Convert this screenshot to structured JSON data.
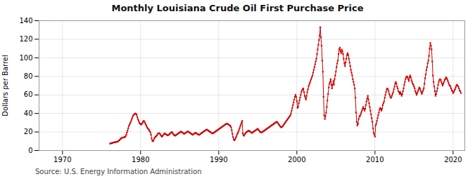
{
  "chart_data": {
    "type": "line",
    "title": "Monthly Louisiana Crude Oil First Purchase Price",
    "ylabel": "Dollars per Barrel",
    "annotations": [
      "Source: U.S. Energy Information Administration"
    ],
    "color": "#cc0000",
    "marker": "square",
    "line_style": "solid",
    "grid": true,
    "xlim": [
      1967,
      2021.5
    ],
    "xticks": [
      1970,
      1980,
      1990,
      2000,
      2010,
      2020
    ],
    "ylim": [
      0,
      140
    ],
    "yticks": [
      0,
      20,
      40,
      60,
      80,
      100,
      120,
      140
    ],
    "x": [
      1976.0833,
      1976.1667,
      1976.25,
      1976.3333,
      1976.4167,
      1976.5,
      1976.5833,
      1976.6667,
      1976.75,
      1976.8333,
      1976.9167,
      1977,
      1977.0833,
      1977.1667,
      1977.25,
      1977.3333,
      1977.4167,
      1977.5,
      1977.5833,
      1977.6667,
      1977.75,
      1977.8333,
      1977.9167,
      1978,
      1978.0833,
      1978.1667,
      1978.25,
      1978.3333,
      1978.4167,
      1978.5,
      1978.5833,
      1978.6667,
      1978.75,
      1978.8333,
      1978.9167,
      1979,
      1979.0833,
      1979.1667,
      1979.25,
      1979.3333,
      1979.4167,
      1979.5,
      1979.5833,
      1979.6667,
      1979.75,
      1979.8333,
      1979.9167,
      1980,
      1980.0833,
      1980.1667,
      1980.25,
      1980.3333,
      1980.4167,
      1980.5,
      1980.5833,
      1980.6667,
      1980.75,
      1980.8333,
      1980.9167,
      1981,
      1981.0833,
      1981.1667,
      1981.25,
      1981.3333,
      1981.4167,
      1981.5,
      1981.5833,
      1981.6667,
      1981.75,
      1981.8333,
      1981.9167,
      1982,
      1982.0833,
      1982.1667,
      1982.25,
      1982.3333,
      1982.4167,
      1982.5,
      1982.5833,
      1982.6667,
      1982.75,
      1982.8333,
      1982.9167,
      1983,
      1983.0833,
      1983.1667,
      1983.25,
      1983.3333,
      1983.4167,
      1983.5,
      1983.5833,
      1983.6667,
      1983.75,
      1983.8333,
      1983.9167,
      1984,
      1984.0833,
      1984.1667,
      1984.25,
      1984.3333,
      1984.4167,
      1984.5,
      1984.5833,
      1984.6667,
      1984.75,
      1984.8333,
      1984.9167,
      1985,
      1985.0833,
      1985.1667,
      1985.25,
      1985.3333,
      1985.4167,
      1985.5,
      1985.5833,
      1985.6667,
      1985.75,
      1985.8333,
      1985.9167,
      1986,
      1986.0833,
      1986.1667,
      1986.25,
      1986.3333,
      1986.4167,
      1986.5,
      1986.5833,
      1986.6667,
      1986.75,
      1986.8333,
      1986.9167,
      1987,
      1987.0833,
      1987.1667,
      1987.25,
      1987.3333,
      1987.4167,
      1987.5,
      1987.5833,
      1987.6667,
      1987.75,
      1987.8333,
      1987.9167,
      1988,
      1988.0833,
      1988.1667,
      1988.25,
      1988.3333,
      1988.4167,
      1988.5,
      1988.5833,
      1988.6667,
      1988.75,
      1988.8333,
      1988.9167,
      1989,
      1989.0833,
      1989.1667,
      1989.25,
      1989.3333,
      1989.4167,
      1989.5,
      1989.5833,
      1989.6667,
      1989.75,
      1989.8333,
      1989.9167,
      1990,
      1990.0833,
      1990.1667,
      1990.25,
      1990.3333,
      1990.4167,
      1990.5,
      1990.5833,
      1990.6667,
      1990.75,
      1990.8333,
      1990.9167,
      1991,
      1991.0833,
      1991.1667,
      1991.25,
      1991.3333,
      1991.4167,
      1991.5,
      1991.5833,
      1991.6667,
      1991.75,
      1991.8333,
      1991.9167,
      1992,
      1992.0833,
      1992.1667,
      1992.25,
      1992.3333,
      1992.4167,
      1992.5,
      1992.5833,
      1992.6667,
      1992.75,
      1992.8333,
      1992.9167,
      1993,
      1993.0833,
      1993.1667,
      1993.25,
      1993.3333,
      1993.4167,
      1993.5,
      1993.5833,
      1993.6667,
      1993.75,
      1993.8333,
      1993.9167,
      1994,
      1994.0833,
      1994.1667,
      1994.25,
      1994.3333,
      1994.4167,
      1994.5,
      1994.5833,
      1994.6667,
      1994.75,
      1994.8333,
      1994.9167,
      1995,
      1995.0833,
      1995.1667,
      1995.25,
      1995.3333,
      1995.4167,
      1995.5,
      1995.5833,
      1995.6667,
      1995.75,
      1995.8333,
      1995.9167,
      1996,
      1996.0833,
      1996.1667,
      1996.25,
      1996.3333,
      1996.4167,
      1996.5,
      1996.5833,
      1996.6667,
      1996.75,
      1996.8333,
      1996.9167,
      1997,
      1997.0833,
      1997.1667,
      1997.25,
      1997.3333,
      1997.4167,
      1997.5,
      1997.5833,
      1997.6667,
      1997.75,
      1997.8333,
      1997.9167,
      1998,
      1998.0833,
      1998.1667,
      1998.25,
      1998.3333,
      1998.4167,
      1998.5,
      1998.5833,
      1998.6667,
      1998.75,
      1998.8333,
      1998.9167,
      1999,
      1999.0833,
      1999.1667,
      1999.25,
      1999.3333,
      1999.4167,
      1999.5,
      1999.5833,
      1999.6667,
      1999.75,
      1999.8333,
      1999.9167,
      2000,
      2000.0833,
      2000.1667,
      2000.25,
      2000.3333,
      2000.4167,
      2000.5,
      2000.5833,
      2000.6667,
      2000.75,
      2000.8333,
      2000.9167,
      2001,
      2001.0833,
      2001.1667,
      2001.25,
      2001.3333,
      2001.4167,
      2001.5,
      2001.5833,
      2001.6667,
      2001.75,
      2001.8333,
      2001.9167,
      2002,
      2002.0833,
      2002.1667,
      2002.25,
      2002.3333,
      2002.4167,
      2002.5,
      2002.5833,
      2002.6667,
      2002.75,
      2002.8333,
      2002.9167,
      2003,
      2003.0833,
      2003.1667,
      2003.25,
      2003.3333,
      2003.4167,
      2003.5,
      2003.5833,
      2003.6667,
      2003.75,
      2003.8333,
      2003.9167,
      2004,
      2004.0833,
      2004.1667,
      2004.25,
      2004.3333,
      2004.4167,
      2004.5,
      2004.5833,
      2004.6667,
      2004.75,
      2004.8333,
      2004.9167,
      2005,
      2005.0833,
      2005.1667,
      2005.25,
      2005.3333,
      2005.4167,
      2005.5,
      2005.5833,
      2005.6667,
      2005.75,
      2005.8333,
      2005.9167,
      2006,
      2006.0833,
      2006.1667,
      2006.25,
      2006.3333,
      2006.4167,
      2006.5,
      2006.5833,
      2006.6667,
      2006.75,
      2006.8333,
      2006.9167,
      2007,
      2007.0833,
      2007.1667,
      2007.25,
      2007.3333,
      2007.4167,
      2007.5,
      2007.5833,
      2007.6667,
      2007.75,
      2007.8333,
      2007.9167,
      2008,
      2008.0833,
      2008.1667,
      2008.25,
      2008.3333,
      2008.4167,
      2008.5,
      2008.5833,
      2008.6667,
      2008.75,
      2008.8333,
      2008.9167,
      2009,
      2009.0833,
      2009.1667,
      2009.25,
      2009.3333,
      2009.4167,
      2009.5,
      2009.5833,
      2009.6667,
      2009.75,
      2009.8333,
      2009.9167,
      2010,
      2010.0833,
      2010.1667,
      2010.25,
      2010.3333,
      2010.4167,
      2010.5,
      2010.5833,
      2010.6667,
      2010.75,
      2010.8333,
      2010.9167,
      2011,
      2011.0833,
      2011.1667,
      2011.25,
      2011.3333,
      2011.4167,
      2011.5,
      2011.5833,
      2011.6667,
      2011.75,
      2011.8333,
      2011.9167,
      2012,
      2012.0833,
      2012.1667,
      2012.25,
      2012.3333,
      2012.4167,
      2012.5,
      2012.5833,
      2012.6667,
      2012.75,
      2012.8333,
      2012.9167,
      2013,
      2013.0833,
      2013.1667,
      2013.25,
      2013.3333,
      2013.4167,
      2013.5,
      2013.5833,
      2013.6667,
      2013.75,
      2013.8333,
      2013.9167,
      2014,
      2014.0833,
      2014.1667,
      2014.25,
      2014.3333,
      2014.4167,
      2014.5,
      2014.5833,
      2014.6667,
      2014.75,
      2014.8333,
      2014.9167,
      2015,
      2015.0833,
      2015.1667,
      2015.25,
      2015.3333,
      2015.4167,
      2015.5,
      2015.5833,
      2015.6667,
      2015.75,
      2015.8333,
      2015.9167,
      2016,
      2016.0833,
      2016.1667,
      2016.25,
      2016.3333,
      2016.4167,
      2016.5,
      2016.5833,
      2016.6667,
      2016.75,
      2016.8333,
      2016.9167,
      2017,
      2017.0833,
      2017.1667,
      2017.25,
      2017.3333,
      2017.4167,
      2017.5,
      2017.5833,
      2017.6667,
      2017.75,
      2017.8333,
      2017.9167,
      2018,
      2018.0833,
      2018.1667,
      2018.25,
      2018.3333,
      2018.4167,
      2018.5,
      2018.5833,
      2018.6667,
      2018.75,
      2018.8333,
      2018.9167,
      2019,
      2019.0833,
      2019.1667,
      2019.25,
      2019.3333,
      2019.4167,
      2019.5,
      2019.5833,
      2019.6667,
      2019.75,
      2019.8333,
      2019.9167,
      2020,
      2020.0833,
      2020.1667,
      2020.25,
      2020.3333,
      2020.4167,
      2020.5,
      2020.5833,
      2020.6667,
      2020.75,
      2020.8333,
      2020.9167,
      2021
    ],
    "values": [
      7.51,
      7.6,
      7.9,
      8.1,
      8.31,
      8.57,
      8.72,
      8.96,
      9.04,
      9.18,
      9.34,
      9.55,
      9.77,
      10.2,
      10.88,
      11.65,
      12.4,
      13.05,
      13.68,
      13.91,
      14.05,
      14.21,
      14.35,
      14.6,
      15.5,
      17.2,
      19.3,
      21.5,
      24.0,
      26.5,
      28.0,
      29.5,
      31.0,
      33.0,
      35.0,
      37.0,
      38.0,
      39.0,
      39.5,
      40.0,
      39.5,
      38.5,
      36.0,
      33.5,
      32.0,
      30.0,
      29.0,
      28.5,
      28.0,
      29.0,
      30.0,
      31.5,
      32.0,
      31.0,
      29.5,
      28.0,
      26.5,
      25.0,
      24.0,
      23.0,
      22.0,
      21.0,
      19.5,
      17.0,
      13.0,
      10.5,
      10.0,
      11.0,
      13.0,
      14.0,
      15.0,
      15.5,
      16.5,
      17.5,
      18.5,
      18.8,
      18.5,
      17.5,
      16.5,
      15.5,
      15.0,
      16.0,
      17.0,
      18.0,
      18.5,
      18.0,
      17.5,
      17.0,
      16.5,
      16.5,
      17.0,
      17.5,
      18.0,
      19.0,
      19.5,
      20.0,
      19.0,
      18.0,
      17.0,
      16.5,
      16.0,
      16.5,
      17.0,
      17.5,
      18.0,
      18.5,
      19.0,
      19.5,
      20.0,
      20.5,
      20.0,
      19.5,
      19.0,
      18.5,
      18.0,
      18.5,
      19.0,
      19.5,
      20.0,
      20.5,
      20.5,
      20.0,
      19.5,
      19.0,
      18.5,
      18.0,
      17.5,
      17.0,
      17.5,
      18.0,
      18.5,
      19.0,
      19.0,
      18.5,
      18.0,
      17.5,
      17.0,
      17.0,
      17.5,
      18.0,
      18.5,
      19.0,
      19.5,
      20.0,
      20.5,
      21.0,
      21.5,
      22.0,
      22.5,
      22.5,
      22.0,
      21.5,
      21.0,
      20.5,
      20.0,
      19.5,
      19.0,
      18.5,
      18.5,
      19.0,
      19.5,
      20.0,
      20.5,
      21.0,
      21.5,
      22.0,
      22.5,
      23.0,
      23.5,
      24.0,
      24.5,
      25.0,
      25.5,
      26.0,
      26.5,
      27.0,
      27.5,
      28.0,
      28.5,
      29.0,
      29.0,
      28.5,
      28.0,
      27.5,
      27.0,
      26.5,
      25.0,
      22.0,
      18.0,
      14.5,
      12.0,
      11.0,
      12.0,
      13.5,
      15.0,
      17.0,
      18.5,
      20.0,
      22.0,
      24.0,
      26.0,
      28.0,
      30.0,
      32.0,
      18.5,
      16.5,
      16.0,
      17.5,
      18.5,
      19.5,
      20.0,
      20.5,
      21.0,
      21.5,
      21.0,
      20.5,
      20.0,
      19.5,
      19.0,
      19.5,
      20.0,
      20.5,
      21.0,
      21.5,
      22.0,
      22.5,
      23.0,
      23.5,
      22.5,
      21.5,
      20.5,
      20.0,
      19.5,
      19.5,
      20.0,
      20.5,
      21.0,
      21.5,
      22.0,
      22.5,
      23.0,
      23.5,
      24.0,
      24.5,
      25.0,
      25.5,
      26.0,
      26.5,
      27.0,
      27.5,
      28.0,
      28.5,
      29.0,
      29.5,
      30.0,
      30.5,
      31.0,
      30.5,
      29.5,
      28.5,
      27.5,
      26.5,
      25.5,
      25.0,
      25.5,
      26.0,
      27.0,
      28.0,
      29.0,
      30.0,
      31.0,
      32.0,
      33.0,
      34.0,
      35.0,
      36.0,
      37.0,
      38.0,
      40.0,
      43.0,
      46.0,
      49.0,
      52.0,
      55.0,
      58.0,
      60.0,
      58.0,
      53.0,
      46.0,
      47.0,
      51.0,
      54.0,
      57.0,
      60.0,
      63.0,
      65.0,
      66.0,
      67.0,
      63.0,
      59.0,
      57.0,
      55.0,
      59.0,
      63.0,
      66.0,
      69.0,
      71.0,
      73.0,
      75.0,
      77.0,
      79.0,
      81.0,
      84.0,
      87.0,
      90.0,
      93.0,
      96.0,
      99.0,
      104.0,
      109.0,
      114.0,
      119.0,
      124.0,
      133.0,
      122.0,
      113.0,
      97.0,
      85.0,
      58.0,
      38.0,
      34.0,
      37.0,
      41.0,
      47.0,
      54.0,
      61.0,
      68.0,
      72.0,
      74.0,
      77.0,
      71.0,
      67.0,
      71.0,
      75.0,
      71.0,
      77.0,
      81.0,
      85.0,
      90.0,
      94.0,
      97.0,
      104.0,
      109.0,
      111.0,
      107.0,
      105.0,
      109.0,
      107.0,
      104.0,
      99.0,
      94.0,
      91.0,
      95.0,
      99.0,
      103.0,
      105.0,
      103.0,
      99.0,
      95.0,
      91.0,
      87.0,
      84.0,
      81.0,
      77.0,
      74.0,
      71.0,
      67.0,
      57.0,
      41.0,
      31.0,
      27.0,
      29.0,
      34.0,
      37.0,
      37.0,
      39.0,
      41.0,
      43.0,
      45.0,
      47.0,
      45.0,
      43.0,
      45.0,
      49.0,
      53.0,
      56.0,
      59.0,
      55.0,
      51.0,
      47.0,
      43.0,
      39.0,
      35.0,
      31.0,
      24.0,
      19.0,
      17.0,
      15.0,
      27.0,
      29.0,
      32.0,
      35.0,
      38.0,
      41.0,
      44.0,
      46.0,
      45.0,
      43.0,
      45.0,
      49.0,
      51.0,
      53.0,
      57.0,
      60.0,
      63.0,
      66.0,
      67.0,
      66.0,
      64.0,
      61.0,
      59.0,
      57.0,
      57.0,
      59.0,
      61.0,
      63.0,
      66.0,
      69.0,
      72.0,
      74.0,
      72.0,
      69.0,
      67.0,
      64.0,
      63.0,
      61.0,
      63.0,
      61.0,
      59.0,
      61.0,
      64.0,
      67.0,
      71.0,
      74.0,
      77.0,
      79.0,
      80.0,
      79.0,
      77.0,
      75.0,
      79.0,
      81.0,
      79.0,
      76.0,
      74.0,
      72.0,
      71.0,
      69.0,
      67.0,
      64.0,
      62.0,
      60.0,
      62.0,
      64.0,
      66.0,
      68.0,
      67.0,
      65.0,
      63.0,
      61.0,
      63.0,
      65.0,
      67.0,
      72.0,
      78.0,
      82.0,
      87.0,
      90.0,
      94.0,
      97.0,
      102.0,
      110.0,
      116.0,
      113.0,
      109.0,
      96.0,
      81.0,
      74.0,
      69.0,
      64.0,
      59.0,
      61.0,
      64.0,
      67.0,
      71.0,
      74.0,
      76.0,
      77.0,
      76.0,
      74.0,
      72.0,
      70.0,
      72.0,
      74.0,
      76.0,
      77.0,
      79.0,
      78.0,
      77.0,
      75.0,
      73.0,
      71.0,
      70.0,
      69.0,
      67.0,
      65.0,
      64.0,
      62.0,
      63.0,
      65.0,
      66.0,
      68.0,
      70.0,
      71.0,
      70.0,
      69.0,
      67.0,
      65.0,
      64.0,
      62.0
    ]
  }
}
